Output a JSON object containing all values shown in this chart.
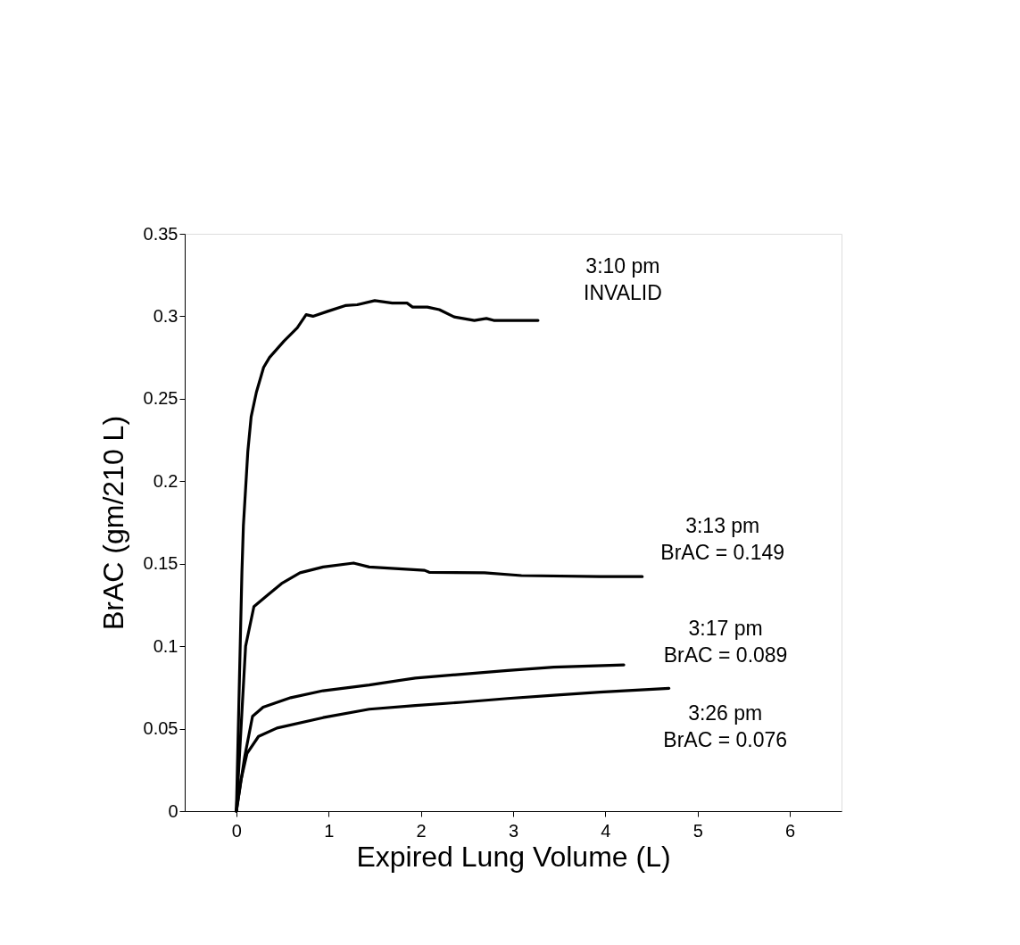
{
  "chart_data": {
    "type": "line",
    "xlabel": "Expired Lung Volume (L)",
    "ylabel": "BrAC  (gm/210 L)",
    "xlim": [
      -0.56,
      6.56
    ],
    "xticks": [
      0,
      1,
      2,
      3,
      4,
      5,
      6
    ],
    "ylim": [
      0,
      0.35
    ],
    "yticks": [
      0,
      0.05,
      0.1,
      0.15,
      0.2,
      0.25,
      0.3,
      0.35
    ],
    "grid": false,
    "marker": "none",
    "line_style": "solid",
    "series": [
      {
        "color": "#000000",
        "x": [
          0,
          0.06,
          0.076,
          0.124,
          0.16,
          0.217,
          0.295,
          0.359,
          0.517,
          0.66,
          0.756,
          0.83,
          0.99,
          1.18,
          1.31,
          1.5,
          1.69,
          1.85,
          1.91,
          2.07,
          2.2,
          2.36,
          2.58,
          2.71,
          2.79,
          3.27
        ],
        "values": [
          0,
          0.145,
          0.173,
          0.218,
          0.239,
          0.254,
          0.269,
          0.275,
          0.285,
          0.293,
          0.301,
          0.3,
          0.303,
          0.3065,
          0.307,
          0.3095,
          0.308,
          0.308,
          0.3056,
          0.3056,
          0.304,
          0.2996,
          0.2975,
          0.2987,
          0.2975,
          0.2975
        ]
      },
      {
        "color": "#000000",
        "x": [
          0,
          0.1,
          0.19,
          0.34,
          0.49,
          0.69,
          0.94,
          1.27,
          1.44,
          2.04,
          2.09,
          2.69,
          3.09,
          3.94,
          4.4
        ],
        "values": [
          0,
          0.1,
          0.124,
          0.131,
          0.138,
          0.1445,
          0.148,
          0.1504,
          0.148,
          0.146,
          0.1448,
          0.1445,
          0.1428,
          0.1422,
          0.1422
        ]
      },
      {
        "color": "#000000",
        "x": [
          0,
          0.09,
          0.175,
          0.29,
          0.59,
          0.94,
          1.44,
          1.94,
          2.44,
          2.94,
          3.44,
          4.2
        ],
        "values": [
          0,
          0.033,
          0.0575,
          0.063,
          0.0688,
          0.073,
          0.0765,
          0.0807,
          0.083,
          0.0853,
          0.0873,
          0.0887
        ]
      },
      {
        "color": "#000000",
        "x": [
          0,
          0.05,
          0.115,
          0.24,
          0.44,
          0.94,
          1.44,
          1.94,
          2.44,
          2.94,
          3.44,
          3.94,
          4.69
        ],
        "values": [
          0,
          0.019,
          0.035,
          0.0453,
          0.0504,
          0.0567,
          0.0618,
          0.064,
          0.066,
          0.0683,
          0.0703,
          0.0722,
          0.0745
        ]
      }
    ],
    "annotations": [
      "3:10 pm\nINVALID",
      "3:13 pm\nBrAC = 0.149",
      "3:17 pm\nBrAC = 0.089",
      "3:26 pm\nBrAC = 0.076"
    ]
  }
}
